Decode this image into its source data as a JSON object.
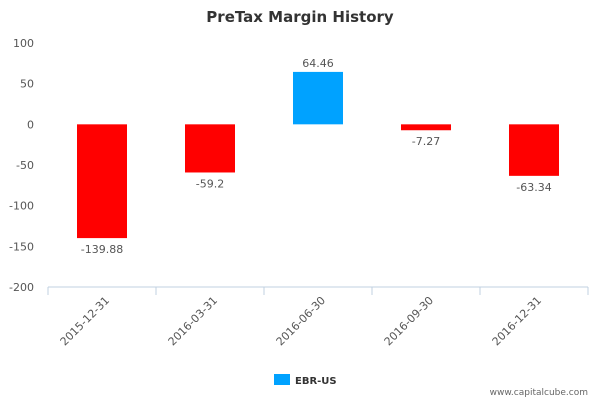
{
  "chart_data": {
    "type": "bar",
    "title": "PreTax Margin History",
    "categories": [
      "2015-12-31",
      "2016-03-31",
      "2016-06-30",
      "2016-09-30",
      "2016-12-31"
    ],
    "series": [
      {
        "name": "EBR-US",
        "values": [
          -139.88,
          -59.2,
          64.46,
          -7.27,
          -63.34
        ]
      }
    ],
    "data_labels": [
      "-139.88",
      "-59.2",
      "64.46",
      "-7.27",
      "-63.34"
    ],
    "ylim": [
      -200,
      100
    ],
    "yticks": [
      100,
      50,
      0,
      -50,
      -100,
      -150,
      -200
    ],
    "xlabel": "",
    "ylabel": "",
    "grid": false,
    "legend_position": "bottom",
    "colors": {
      "positive": "#00a2ff",
      "negative": "#ff0000",
      "legend_swatch": "#00a2ff",
      "axis": "#c0d0e0"
    }
  },
  "credit": "www.capitalcube.com"
}
